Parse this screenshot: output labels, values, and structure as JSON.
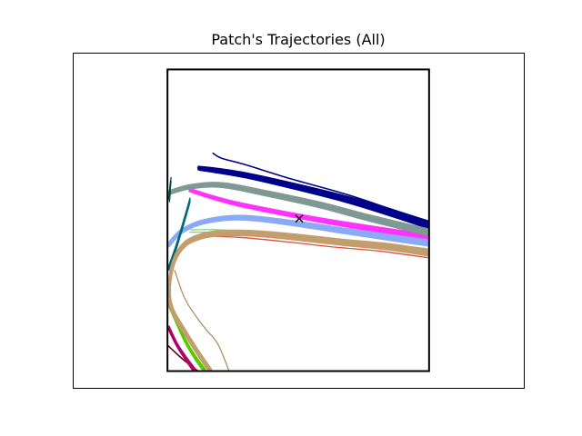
{
  "chart_data": {
    "type": "line",
    "title": "Patch's Trajectories (All)",
    "xlabel": "",
    "ylabel": "",
    "axes_ticks": "none",
    "grid": false,
    "legend": "none",
    "xlim": [
      0,
      100
    ],
    "ylim": [
      0,
      100
    ],
    "patch_box": {
      "x0": 21,
      "x1": 79,
      "y0": 5,
      "y1": 95
    },
    "marker": {
      "symbol": "x",
      "x": 50.2,
      "y": 50.5,
      "color": "#000000"
    },
    "series": [
      {
        "color": "#00008b",
        "stroke": 1.6,
        "count": 1,
        "spread": 0,
        "points": [
          [
            31.1,
            70
          ],
          [
            33,
            68.5
          ],
          [
            38,
            66.7
          ],
          [
            48,
            62.5
          ],
          [
            60,
            58
          ],
          [
            70,
            53.6
          ],
          [
            79,
            49.6
          ]
        ]
      },
      {
        "color": "#00008b",
        "stroke": 1.2,
        "count": 14,
        "spread": 0.9,
        "points": [
          [
            28,
            65.5
          ],
          [
            31,
            65
          ],
          [
            38,
            63.5
          ],
          [
            48,
            60.5
          ],
          [
            60,
            56.5
          ],
          [
            70,
            52.5
          ],
          [
            79,
            48.6
          ]
        ]
      },
      {
        "color": "#ff33ff",
        "stroke": 1.4,
        "count": 12,
        "spread": 0.6,
        "points": [
          [
            26,
            59
          ],
          [
            30,
            57.2
          ],
          [
            36,
            55
          ],
          [
            45,
            52.5
          ],
          [
            55,
            50
          ],
          [
            65,
            47.8
          ],
          [
            79,
            45
          ]
        ]
      },
      {
        "color": "#7f9a94",
        "stroke": 1.5,
        "count": 28,
        "spread": 0.75,
        "points": [
          [
            21.2,
            58.2
          ],
          [
            26,
            60
          ],
          [
            33,
            60.5
          ],
          [
            43,
            58
          ],
          [
            55,
            54.5
          ],
          [
            66,
            50.6
          ],
          [
            79,
            46.4
          ]
        ]
      },
      {
        "color": "#8aaaf5",
        "stroke": 1.4,
        "count": 18,
        "spread": 0.7,
        "points": [
          [
            21.2,
            42.5
          ],
          [
            24,
            46.5
          ],
          [
            29,
            49.5
          ],
          [
            37,
            50.8
          ],
          [
            47,
            49.5
          ],
          [
            58,
            47.3
          ],
          [
            68,
            45.3
          ],
          [
            79,
            43.2
          ]
        ]
      },
      {
        "color": "#e04b3a",
        "stroke": 1.3,
        "count": 1,
        "spread": 0,
        "points": [
          [
            27,
            45.3
          ],
          [
            31,
            45.2
          ],
          [
            38,
            44.8
          ],
          [
            48,
            43.5
          ],
          [
            58,
            42
          ],
          [
            68,
            40.8
          ],
          [
            79,
            38.8
          ]
        ]
      },
      {
        "color": "#7dd87d",
        "stroke": 1.3,
        "count": 2,
        "spread": 0.5,
        "points": [
          [
            26,
            46.8
          ],
          [
            31,
            46.8
          ],
          [
            38,
            46.3
          ],
          [
            48,
            45
          ],
          [
            58,
            43.6
          ],
          [
            68,
            42.5
          ],
          [
            79,
            40.8
          ]
        ]
      },
      {
        "color": "#006b75",
        "stroke": 1.3,
        "count": 5,
        "spread": 0.5,
        "points": [
          [
            21.2,
            35.5
          ],
          [
            22.8,
            41.5
          ],
          [
            24.5,
            49
          ],
          [
            26,
            56
          ]
        ]
      },
      {
        "color": "#004d40",
        "stroke": 1.3,
        "count": 2,
        "spread": 0.4,
        "points": [
          [
            21.3,
            55.8
          ],
          [
            21.5,
            58
          ],
          [
            21.6,
            60
          ],
          [
            21.8,
            62.2
          ]
        ]
      },
      {
        "color": "#660011",
        "stroke": 1.6,
        "count": 1,
        "spread": 0,
        "points": [
          [
            21.2,
            12.5
          ],
          [
            24,
            9
          ],
          [
            26.5,
            6.3
          ],
          [
            27.7,
            5.1
          ]
        ]
      },
      {
        "color": "#b0006a",
        "stroke": 1.8,
        "count": 4,
        "spread": 0.5,
        "points": [
          [
            21.2,
            18.2
          ],
          [
            23,
            13.2
          ],
          [
            25,
            9
          ],
          [
            27,
            5.2
          ]
        ]
      },
      {
        "color": "#55cc00",
        "stroke": 1.8,
        "count": 7,
        "spread": 0.45,
        "points": [
          [
            21.2,
            25.5
          ],
          [
            22.8,
            20.5
          ],
          [
            25,
            14
          ],
          [
            27.2,
            9
          ],
          [
            29.3,
            5.1
          ]
        ]
      },
      {
        "color": "#c39e6e",
        "stroke": 1.8,
        "count": 18,
        "spread": 0.7,
        "points": [
          [
            30.5,
            5.1
          ],
          [
            27.5,
            11
          ],
          [
            24.6,
            17.2
          ],
          [
            22,
            23.5
          ],
          [
            21.4,
            30
          ],
          [
            22.5,
            38
          ],
          [
            25,
            43
          ],
          [
            29,
            45.4
          ],
          [
            34,
            46.2
          ],
          [
            41,
            46
          ],
          [
            50,
            44.9
          ],
          [
            60,
            43.4
          ],
          [
            70,
            42.1
          ],
          [
            79,
            40.3
          ]
        ]
      },
      {
        "color": "#b38f63",
        "stroke": 1.3,
        "count": 1,
        "spread": 0,
        "points": [
          [
            22.6,
            35
          ],
          [
            24.8,
            26.8
          ],
          [
            27.4,
            21.2
          ],
          [
            29.5,
            17.5
          ],
          [
            32.2,
            13
          ],
          [
            34.6,
            5.2
          ]
        ]
      }
    ]
  }
}
